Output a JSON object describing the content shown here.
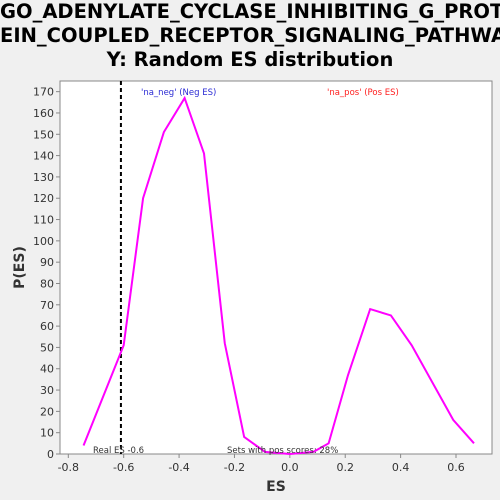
{
  "title_lines": [
    "GO_ADENYLATE_CYCLASE_INHIBITING_G_PROT",
    "EIN_COUPLED_RECEPTOR_SIGNALING_PATHWA",
    "Y: Random ES distribution"
  ],
  "chart_data": {
    "type": "line",
    "xlabel": "ES",
    "ylabel": "P(ES)",
    "xlim": [
      -0.83,
      0.73
    ],
    "ylim": [
      0,
      175
    ],
    "xticks": [
      -0.8,
      -0.6,
      -0.4,
      -0.2,
      0.0,
      0.2,
      0.4,
      0.6
    ],
    "xtick_labels": [
      "-0.8",
      "-0.6",
      "-0.4",
      "-0.2",
      "0.0",
      "0.2",
      "0.4",
      "0.6"
    ],
    "yticks": [
      0,
      10,
      20,
      30,
      40,
      50,
      60,
      70,
      80,
      90,
      100,
      110,
      120,
      130,
      140,
      150,
      160,
      170
    ],
    "series": [
      {
        "color": "#ff00ff",
        "x": [
          -0.745,
          -0.6,
          -0.53,
          -0.455,
          -0.38,
          -0.31,
          -0.235,
          -0.165,
          -0.09,
          0.0,
          0.085,
          0.14,
          0.21,
          0.29,
          0.365,
          0.44,
          0.59,
          0.665
        ],
        "y": [
          4,
          51,
          120,
          151,
          167,
          141,
          52,
          8,
          1,
          0,
          1,
          5,
          37,
          68,
          65,
          51,
          16,
          5
        ]
      }
    ],
    "real_es": -0.61,
    "grid": false,
    "legend_neg": {
      "text": "'na_neg' (Neg ES)",
      "color": "#2b2bd4"
    },
    "legend_pos": {
      "text": "'na_pos' (Pos ES)",
      "color": "#ff2020"
    },
    "annotation_left": "Real ES -0.6",
    "annotation_right": "Sets with pos scores: 28%"
  }
}
